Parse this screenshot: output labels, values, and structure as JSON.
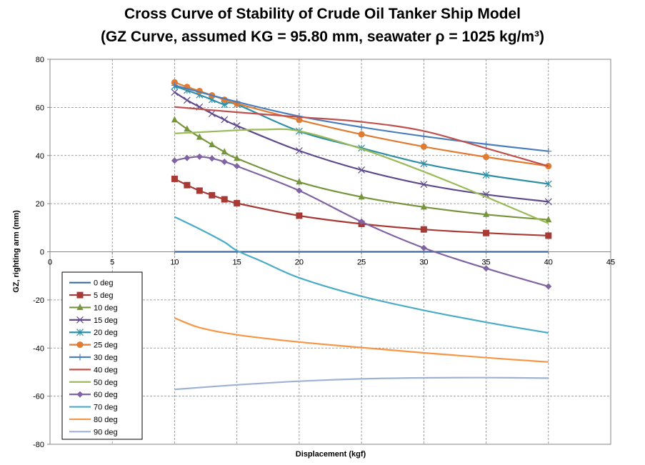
{
  "chart_data": {
    "type": "line",
    "title": "Cross Curve of Stability of Crude Oil Tanker Ship Model",
    "subtitle": "(GZ Curve, assumed KG = 95.80 mm, seawater ρ = 1025 kg/m³)",
    "xlabel": "Displacement  (kgf)",
    "ylabel": "GZ, righting arm (mm)",
    "xlim": [
      0,
      45
    ],
    "ylim": [
      -80,
      80
    ],
    "x_ticks": [
      "0",
      "5",
      "10",
      "15",
      "20",
      "25",
      "30",
      "35",
      "40",
      "45"
    ],
    "y_ticks": [
      "80",
      "60",
      "40",
      "20",
      "0",
      "-20",
      "-40",
      "-60",
      "-80"
    ],
    "grid": true,
    "legend_position": "bottom-left",
    "series": [
      {
        "name": "0 deg",
        "color": "#3c6aa0",
        "marker": "none",
        "x": [
          10,
          15,
          20,
          25,
          30,
          35,
          40
        ],
        "y": [
          0,
          0,
          0,
          0,
          0,
          0,
          0
        ]
      },
      {
        "name": "5 deg",
        "color": "#a83a36",
        "marker": "square",
        "x": [
          10,
          11,
          12,
          13,
          14,
          15,
          20,
          25,
          30,
          35,
          40
        ],
        "y": [
          30.3,
          27.7,
          25.4,
          23.5,
          21.8,
          20.2,
          15.0,
          11.6,
          9.3,
          7.8,
          6.7
        ]
      },
      {
        "name": "10 deg",
        "color": "#77953c",
        "marker": "triangle",
        "x": [
          10,
          11,
          12,
          13,
          14,
          15,
          20,
          25,
          30,
          35,
          40
        ],
        "y": [
          54.8,
          51.0,
          47.6,
          44.5,
          41.5,
          38.8,
          29.0,
          22.8,
          18.6,
          15.5,
          13.3
        ]
      },
      {
        "name": "15 deg",
        "color": "#5f4a8b",
        "marker": "x",
        "x": [
          10,
          11,
          12,
          13,
          14,
          15,
          20,
          25,
          30,
          35,
          40
        ],
        "y": [
          66.3,
          63.0,
          60.2,
          57.4,
          54.9,
          52.4,
          42.0,
          34.0,
          28.0,
          23.8,
          20.8
        ]
      },
      {
        "name": "20 deg",
        "color": "#2e8fa6",
        "marker": "asterisk",
        "x": [
          10,
          11,
          12,
          13,
          14,
          15,
          20,
          25,
          30,
          35,
          40
        ],
        "y": [
          68.8,
          67.1,
          65.2,
          63.2,
          61.2,
          61.2,
          50.1,
          43.1,
          36.6,
          31.9,
          28.2
        ]
      },
      {
        "name": "25 deg",
        "color": "#e07b31",
        "marker": "circle",
        "x": [
          10,
          11,
          12,
          13,
          14,
          15,
          20,
          25,
          30,
          35,
          40
        ],
        "y": [
          70.4,
          68.5,
          66.8,
          65.0,
          63.2,
          61.6,
          54.8,
          48.8,
          43.7,
          39.4,
          35.6
        ]
      },
      {
        "name": "30 deg",
        "color": "#4a7ebd",
        "marker": "plus",
        "x": [
          10,
          15,
          20,
          25,
          30,
          35,
          40
        ],
        "y": [
          69.2,
          62.3,
          56.3,
          51.8,
          48.0,
          44.7,
          41.8
        ]
      },
      {
        "name": "40 deg",
        "color": "#c0504d",
        "marker": "none",
        "x": [
          10,
          15,
          20,
          25,
          30,
          35,
          40
        ],
        "y": [
          60.2,
          58.0,
          56.0,
          54.0,
          50.2,
          43.0,
          35.6
        ]
      },
      {
        "name": "50 deg",
        "color": "#9bbb59",
        "marker": "none",
        "x": [
          10,
          12,
          15,
          17,
          20,
          25,
          30,
          35,
          40
        ],
        "y": [
          49.2,
          49.7,
          50.5,
          50.8,
          50.2,
          42.8,
          33.3,
          22.8,
          11.8
        ]
      },
      {
        "name": "60 deg",
        "color": "#8064a2",
        "marker": "diamond",
        "x": [
          10,
          11,
          12,
          13,
          14,
          15,
          20,
          25,
          30,
          35,
          40
        ],
        "y": [
          37.9,
          39.0,
          39.5,
          38.8,
          37.4,
          35.6,
          25.4,
          12.5,
          1.6,
          -6.9,
          -14.4
        ]
      },
      {
        "name": "70 deg",
        "color": "#4bacc6",
        "marker": "none",
        "x": [
          10,
          12,
          14,
          15,
          17,
          20,
          25,
          30,
          35,
          40
        ],
        "y": [
          14.5,
          9.5,
          4.0,
          0.5,
          -4.0,
          -10.8,
          -18.5,
          -24.3,
          -29.3,
          -33.7
        ]
      },
      {
        "name": "80 deg",
        "color": "#f79646",
        "marker": "none",
        "x": [
          10,
          12,
          15,
          20,
          25,
          30,
          35,
          40
        ],
        "y": [
          -27.5,
          -31.5,
          -34.5,
          -37.5,
          -39.8,
          -42.0,
          -44.0,
          -45.8
        ]
      },
      {
        "name": "90 deg",
        "color": "#9eb3d3",
        "marker": "none",
        "x": [
          10,
          15,
          20,
          25,
          30,
          35,
          40
        ],
        "y": [
          -57.2,
          -55.3,
          -53.8,
          -52.8,
          -52.4,
          -52.3,
          -52.5
        ]
      }
    ]
  }
}
